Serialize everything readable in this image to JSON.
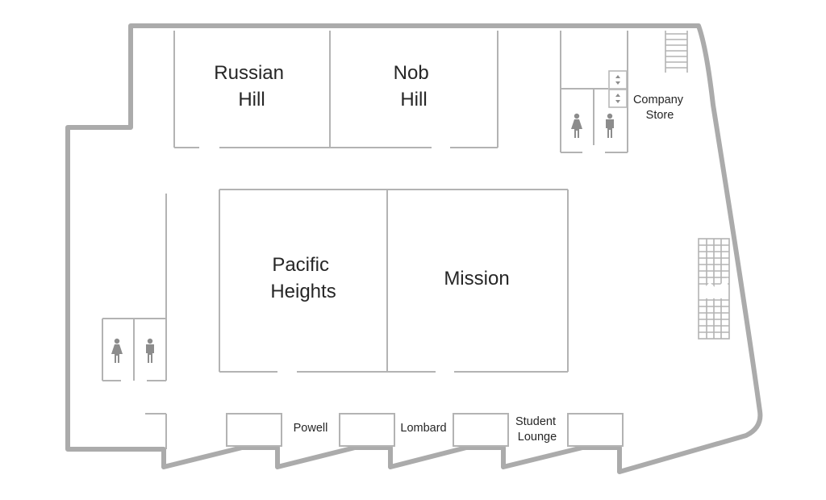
{
  "rooms": {
    "russian_hill": [
      "Russian",
      "Hill"
    ],
    "nob_hill": [
      "Nob",
      "Hill"
    ],
    "pacific_heights": [
      "Pacific",
      "Heights"
    ],
    "mission": [
      "Mission"
    ]
  },
  "small_rooms": {
    "company_store": [
      "Company",
      "Store"
    ],
    "powell": [
      "Powell"
    ],
    "lombard": [
      "Lombard"
    ],
    "student_lounge": [
      "Student",
      "Lounge"
    ]
  },
  "icons": {
    "restroom_women": "woman-restroom-icon",
    "restroom_men": "man-restroom-icon",
    "elevator": "elevator-icon",
    "stairs": "stairs-icon"
  },
  "colors": {
    "walls": "#ababab",
    "text": "#262626",
    "icons": "#8c8c8c"
  }
}
